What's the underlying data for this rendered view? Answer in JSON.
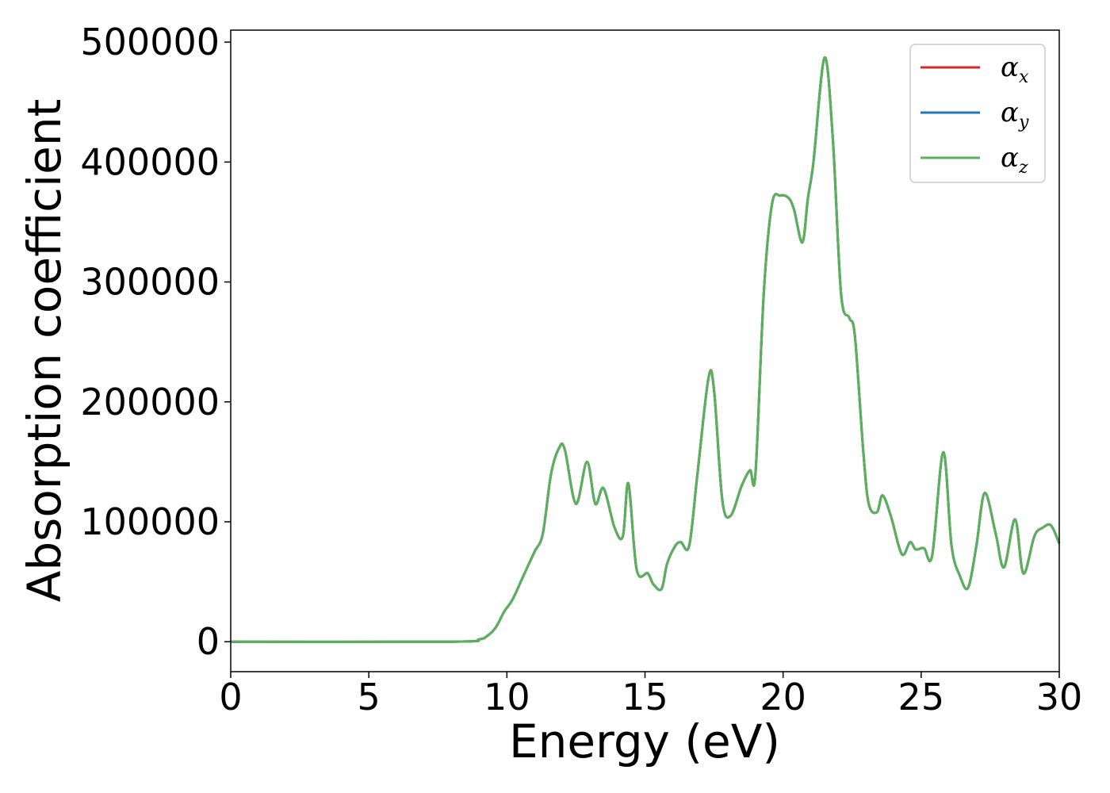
{
  "chart_data": {
    "type": "line",
    "title": "",
    "xlabel": "Energy (eV)",
    "ylabel": "Absorption coefficient",
    "xlim": [
      0,
      30
    ],
    "ylim": [
      -25000,
      510000
    ],
    "x_ticks": [
      0,
      5,
      10,
      15,
      20,
      25,
      30
    ],
    "x_tick_labels": [
      "0",
      "5",
      "10",
      "15",
      "20",
      "25",
      "30"
    ],
    "y_ticks": [
      0,
      100000,
      200000,
      300000,
      400000,
      500000
    ],
    "y_tick_labels": [
      "0",
      "100000",
      "200000",
      "300000",
      "400000",
      "500000"
    ],
    "grid": false,
    "legend_position": "top-right",
    "series": [
      {
        "name": "αx",
        "color": "#d62728",
        "x": [
          0,
          8.0,
          9.0,
          9.3,
          9.6,
          9.9,
          10.2,
          10.6,
          11.0,
          11.3,
          11.6,
          11.9,
          12.1,
          12.5,
          12.9,
          13.2,
          13.5,
          13.9,
          14.2,
          14.4,
          14.7,
          15.1,
          15.3,
          15.6,
          15.8,
          16.1,
          16.3,
          16.6,
          16.9,
          17.3,
          17.5,
          17.8,
          18.1,
          18.5,
          18.8,
          19.0,
          19.3,
          19.6,
          19.9,
          20.2,
          20.4,
          20.7,
          20.9,
          21.1,
          21.5,
          21.8,
          22.1,
          22.4,
          22.6,
          22.9,
          23.1,
          23.4,
          23.6,
          23.9,
          24.3,
          24.6,
          24.8,
          25.1,
          25.4,
          25.8,
          26.1,
          26.4,
          26.7,
          27.0,
          27.3,
          27.7,
          28.0,
          28.4,
          28.7,
          29.1,
          29.4,
          29.7,
          30.0
        ],
        "y": [
          0,
          0,
          2000,
          5000,
          12000,
          25000,
          35000,
          55000,
          75000,
          90000,
          140000,
          162000,
          160000,
          115000,
          150000,
          115000,
          128000,
          95000,
          88000,
          132000,
          60000,
          57000,
          48000,
          44000,
          65000,
          80000,
          83000,
          80000,
          140000,
          220000,
          210000,
          118000,
          105000,
          130000,
          143000,
          140000,
          290000,
          365000,
          372000,
          370000,
          360000,
          333000,
          370000,
          400000,
          487000,
          420000,
          290000,
          270000,
          255000,
          160000,
          115000,
          108000,
          122000,
          105000,
          73000,
          83000,
          77000,
          78000,
          72000,
          158000,
          80000,
          55000,
          45000,
          80000,
          124000,
          90000,
          62000,
          102000,
          57000,
          88000,
          95000,
          97000,
          82000
        ]
      },
      {
        "name": "αy",
        "color": "#1f77b4",
        "x": [
          0,
          8.0,
          9.0,
          9.3,
          9.6,
          9.9,
          10.2,
          10.6,
          11.0,
          11.3,
          11.6,
          11.9,
          12.1,
          12.5,
          12.9,
          13.2,
          13.5,
          13.9,
          14.2,
          14.4,
          14.7,
          15.1,
          15.3,
          15.6,
          15.8,
          16.1,
          16.3,
          16.6,
          16.9,
          17.3,
          17.5,
          17.8,
          18.1,
          18.5,
          18.8,
          19.0,
          19.3,
          19.6,
          19.9,
          20.2,
          20.4,
          20.7,
          20.9,
          21.1,
          21.5,
          21.8,
          22.1,
          22.4,
          22.6,
          22.9,
          23.1,
          23.4,
          23.6,
          23.9,
          24.3,
          24.6,
          24.8,
          25.1,
          25.4,
          25.8,
          26.1,
          26.4,
          26.7,
          27.0,
          27.3,
          27.7,
          28.0,
          28.4,
          28.7,
          29.1,
          29.4,
          29.7,
          30.0
        ],
        "y": [
          0,
          0,
          2000,
          5000,
          12000,
          25000,
          35000,
          55000,
          75000,
          90000,
          140000,
          162000,
          160000,
          115000,
          150000,
          115000,
          128000,
          95000,
          88000,
          132000,
          60000,
          57000,
          48000,
          44000,
          65000,
          80000,
          83000,
          80000,
          140000,
          220000,
          210000,
          118000,
          105000,
          130000,
          143000,
          140000,
          290000,
          365000,
          372000,
          370000,
          360000,
          333000,
          370000,
          400000,
          487000,
          420000,
          290000,
          270000,
          255000,
          160000,
          115000,
          108000,
          122000,
          105000,
          73000,
          83000,
          77000,
          78000,
          72000,
          158000,
          80000,
          55000,
          45000,
          80000,
          124000,
          90000,
          62000,
          102000,
          57000,
          88000,
          95000,
          97000,
          82000
        ]
      },
      {
        "name": "αz",
        "color": "#5bb05b",
        "x": [
          0,
          8.0,
          9.0,
          9.3,
          9.6,
          9.9,
          10.2,
          10.6,
          11.0,
          11.3,
          11.6,
          11.9,
          12.1,
          12.5,
          12.9,
          13.2,
          13.5,
          13.9,
          14.2,
          14.4,
          14.7,
          15.1,
          15.3,
          15.6,
          15.8,
          16.1,
          16.3,
          16.6,
          16.9,
          17.3,
          17.5,
          17.8,
          18.1,
          18.5,
          18.8,
          19.0,
          19.3,
          19.6,
          19.9,
          20.2,
          20.4,
          20.7,
          20.9,
          21.1,
          21.5,
          21.8,
          22.1,
          22.4,
          22.6,
          22.9,
          23.1,
          23.4,
          23.6,
          23.9,
          24.3,
          24.6,
          24.8,
          25.1,
          25.4,
          25.8,
          26.1,
          26.4,
          26.7,
          27.0,
          27.3,
          27.7,
          28.0,
          28.4,
          28.7,
          29.1,
          29.4,
          29.7,
          30.0
        ],
        "y": [
          0,
          0,
          2000,
          5000,
          12000,
          25000,
          35000,
          55000,
          75000,
          90000,
          140000,
          162000,
          160000,
          115000,
          150000,
          115000,
          128000,
          95000,
          88000,
          132000,
          60000,
          57000,
          48000,
          44000,
          65000,
          80000,
          83000,
          80000,
          140000,
          220000,
          210000,
          118000,
          105000,
          130000,
          143000,
          140000,
          290000,
          365000,
          372000,
          370000,
          360000,
          333000,
          370000,
          400000,
          487000,
          420000,
          290000,
          270000,
          255000,
          160000,
          115000,
          108000,
          122000,
          105000,
          73000,
          83000,
          77000,
          78000,
          72000,
          158000,
          80000,
          55000,
          45000,
          80000,
          124000,
          90000,
          62000,
          102000,
          57000,
          88000,
          95000,
          97000,
          82000
        ]
      }
    ]
  }
}
